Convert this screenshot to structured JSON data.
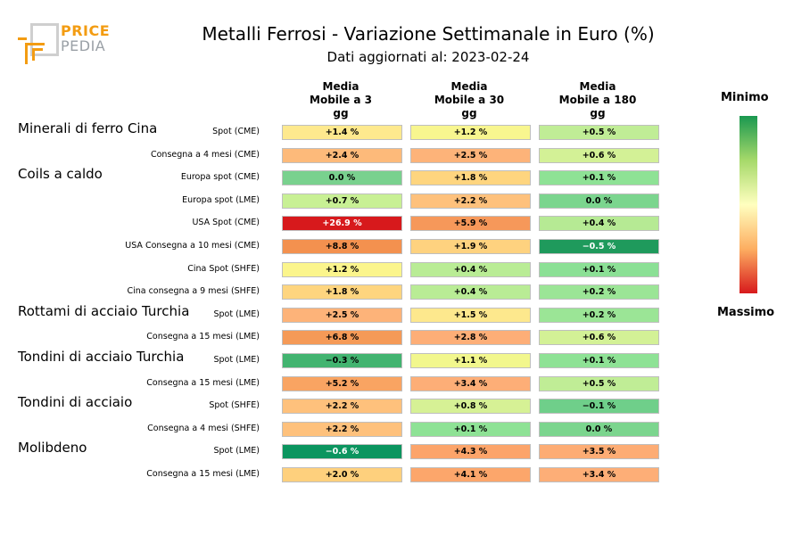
{
  "logo": {
    "line1": "PRICE",
    "line2": "PEDIA"
  },
  "title": "Metalli Ferrosi - Variazione Settimanale in Euro (%)",
  "subtitle": "Dati aggiornati al: 2023-02-24",
  "scale": {
    "min_label": "Minimo",
    "max_label": "Massimo",
    "min_color": "#1a9850",
    "mid_color": "#ffffbf",
    "max_color": "#d7191c"
  },
  "chart_data": {
    "type": "heatmap",
    "columns": [
      "Media\nMobile a 3\ngg",
      "Media\nMobile a 30\ngg",
      "Media\nMobile a 180\ngg"
    ],
    "groups": [
      {
        "name": "Minerali di ferro Cina",
        "rows": [
          {
            "label": "Spot (CME)",
            "values": [
              1.4,
              1.2,
              0.5
            ],
            "text": [
              "+1.4 %",
              "+1.2 %",
              "+0.5 %"
            ],
            "colors": [
              "#fee98e",
              "#f8f68f",
              "#c0ed96"
            ]
          },
          {
            "label": "Consegna a 4 mesi (CME)",
            "values": [
              2.4,
              2.5,
              0.6
            ],
            "text": [
              "+2.4 %",
              "+2.5 %",
              "+0.6 %"
            ],
            "colors": [
              "#fdba7a",
              "#fdb379",
              "#d3f196"
            ]
          }
        ]
      },
      {
        "name": "Coils a caldo",
        "rows": [
          {
            "label": "Europa spot (CME)",
            "values": [
              0.0,
              1.8,
              0.1
            ],
            "text": [
              "0.0 %",
              "+1.8 %",
              "+0.1 %"
            ],
            "colors": [
              "#79d18e",
              "#fed57f",
              "#8ee295"
            ]
          },
          {
            "label": "Europa spot (LME)",
            "values": [
              0.7,
              2.2,
              0.0
            ],
            "text": [
              "+0.7 %",
              "+2.2 %",
              "0.0 %"
            ],
            "colors": [
              "#c8f094",
              "#fec17c",
              "#7bd58e"
            ]
          },
          {
            "label": "USA Spot (CME)",
            "values": [
              26.9,
              5.9,
              0.4
            ],
            "text": [
              "+26.9 %",
              "+5.9 %",
              "+0.4 %"
            ],
            "colors": [
              "#d7191c",
              "#f6985a",
              "#b6ea94"
            ]
          },
          {
            "label": "USA Consegna a 10 mesi (CME)",
            "values": [
              8.8,
              1.9,
              -0.5
            ],
            "text": [
              "+8.8 %",
              "+1.9 %",
              "−0.5 %"
            ],
            "colors": [
              "#f3914f",
              "#fed27f",
              "#1f9a5c"
            ]
          },
          {
            "label": "Cina Spot (SHFE)",
            "values": [
              1.2,
              0.4,
              0.1
            ],
            "text": [
              "+1.2 %",
              "+0.4 %",
              "+0.1 %"
            ],
            "colors": [
              "#fbf58c",
              "#b9ec95",
              "#8be095"
            ]
          },
          {
            "label": "Cina consegna a 9 mesi (SHFE)",
            "values": [
              1.8,
              0.4,
              0.2
            ],
            "text": [
              "+1.8 %",
              "+0.4 %",
              "+0.2 %"
            ],
            "colors": [
              "#fed57f",
              "#b9ec95",
              "#9be596"
            ]
          }
        ]
      },
      {
        "name": "Rottami di acciaio Turchia",
        "rows": [
          {
            "label": "Spot (LME)",
            "values": [
              2.5,
              1.5,
              0.2
            ],
            "text": [
              "+2.5 %",
              "+1.5 %",
              "+0.2 %"
            ],
            "colors": [
              "#fdb379",
              "#fde88d",
              "#9be596"
            ]
          },
          {
            "label": "Consegna a 15 mesi (LME)",
            "values": [
              6.8,
              2.8,
              0.6
            ],
            "text": [
              "+6.8 %",
              "+2.8 %",
              "+0.6 %"
            ],
            "colors": [
              "#f59a57",
              "#fdae77",
              "#d3f196"
            ]
          }
        ]
      },
      {
        "name": "Tondini di acciaio Turchia",
        "rows": [
          {
            "label": "Spot (LME)",
            "values": [
              -0.3,
              1.1,
              0.1
            ],
            "text": [
              "−0.3 %",
              "+1.1 %",
              "+0.1 %"
            ],
            "colors": [
              "#42b470",
              "#f2f78d",
              "#8ee295"
            ]
          },
          {
            "label": "Consegna a 15 mesi (LME)",
            "values": [
              5.2,
              3.4,
              0.5
            ],
            "text": [
              "+5.2 %",
              "+3.4 %",
              "+0.5 %"
            ],
            "colors": [
              "#f9a462",
              "#fdae77",
              "#c0ed96"
            ]
          }
        ]
      },
      {
        "name": "Tondini di acciaio",
        "rows": [
          {
            "label": "Spot (SHFE)",
            "values": [
              2.2,
              0.8,
              -0.1
            ],
            "text": [
              "+2.2 %",
              "+0.8 %",
              "−0.1 %"
            ],
            "colors": [
              "#fec17c",
              "#d6f195",
              "#6fcf8a"
            ]
          },
          {
            "label": "Consegna a 4 mesi (SHFE)",
            "values": [
              2.2,
              0.1,
              0.0
            ],
            "text": [
              "+2.2 %",
              "+0.1 %",
              "0.0 %"
            ],
            "colors": [
              "#fec17c",
              "#8ee295",
              "#7bd58e"
            ]
          }
        ]
      },
      {
        "name": "Molibdeno",
        "rows": [
          {
            "label": "Spot (LME)",
            "values": [
              -0.6,
              4.3,
              3.5
            ],
            "text": [
              "−0.6 %",
              "+4.3 %",
              "+3.5 %"
            ],
            "colors": [
              "#0b955f",
              "#fca46a",
              "#fdac74"
            ]
          },
          {
            "label": "Consegna a 15 mesi (LME)",
            "values": [
              2.0,
              4.1,
              3.4
            ],
            "text": [
              "+2.0 %",
              "+4.1 %",
              "+3.4 %"
            ],
            "colors": [
              "#fed07d",
              "#fca66b",
              "#fdae77"
            ]
          }
        ]
      }
    ]
  }
}
